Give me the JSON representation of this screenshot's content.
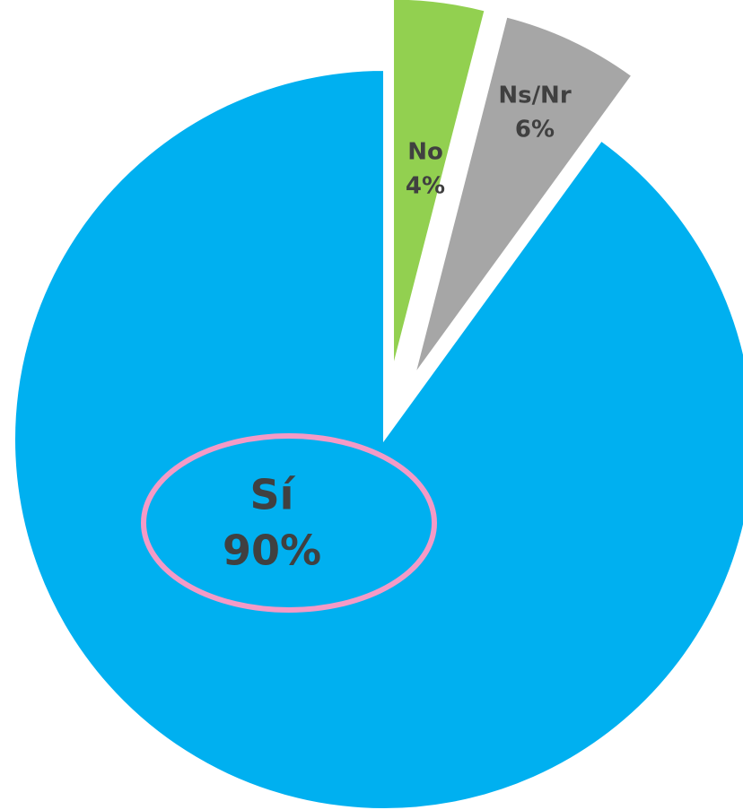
{
  "chart_data": {
    "type": "pie",
    "categories": [
      "No",
      "Ns/Nr",
      "Sí"
    ],
    "values": [
      4,
      6,
      90
    ],
    "value_labels": [
      "4%",
      "6%",
      "90%"
    ],
    "colors": [
      "#92d050",
      "#a6a6a6",
      "#00b0f0"
    ],
    "exploded": [
      true,
      true,
      false
    ]
  }
}
